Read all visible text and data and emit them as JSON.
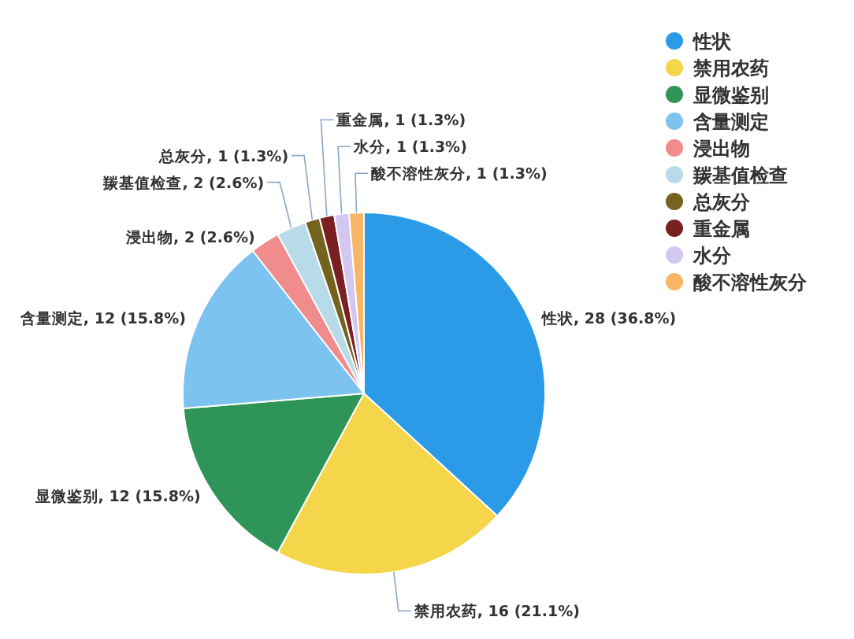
{
  "chart_data": {
    "type": "pie",
    "categories": [
      "性状",
      "禁用农药",
      "显微鉴别",
      "含量测定",
      "浸出物",
      "羰基值检查",
      "总灰分",
      "重金属",
      "水分",
      "酸不溶性灰分"
    ],
    "values": [
      28,
      16,
      12,
      12,
      2,
      2,
      1,
      1,
      1,
      1
    ],
    "colors": [
      "#2b9be8",
      "#f5d54a",
      "#2e9457",
      "#7cc3f0",
      "#f08c8c",
      "#b7dbe8",
      "#74631f",
      "#7a1f22",
      "#d3c8f0",
      "#f7b566"
    ],
    "value_labels": [
      "性状, 28 (36.8%)",
      "禁用农药, 16 (21.1%)",
      "显微鉴别, 12 (15.8%)",
      "含量测定, 12 (15.8%)",
      "浸出物, 2 (2.6%)",
      "羰基值检查, 2 (2.6%)",
      "总灰分, 1 (1.3%)",
      "重金属, 1 (1.3%)",
      "水分, 1 (1.3%)",
      "酸不溶性灰分, 1 (1.3%)"
    ],
    "legend": "top right"
  }
}
